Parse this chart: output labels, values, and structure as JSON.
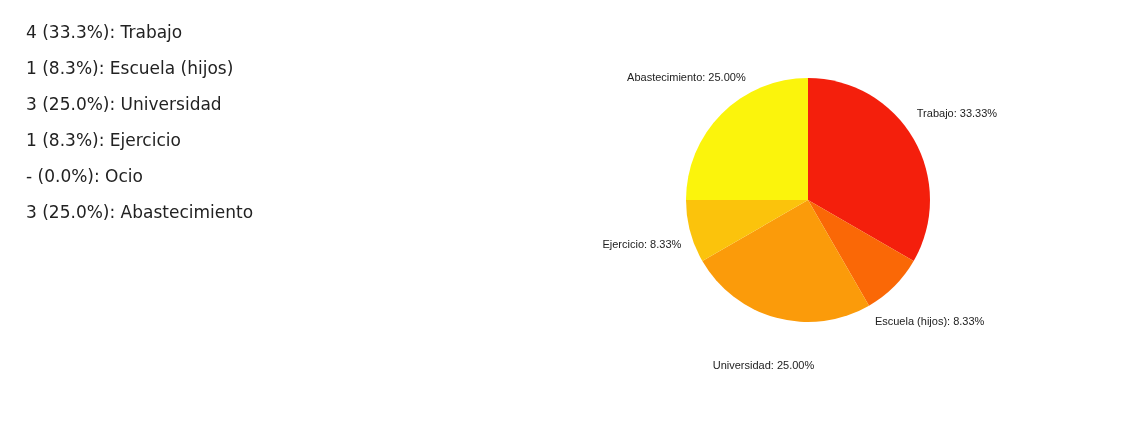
{
  "chart_data": {
    "type": "pie",
    "categories": [
      "Trabajo",
      "Escuela (hijos)",
      "Universidad",
      "Ejercicio",
      "Abastecimiento"
    ],
    "values": [
      33.33,
      8.33,
      25.0,
      8.33,
      25.0
    ],
    "colors": [
      "#f41f0c",
      "#fa6806",
      "#fb9b0a",
      "#fbc30c",
      "#fbf40c"
    ],
    "value_labels": [
      "33.33%",
      "8.33%",
      "25.00%",
      "8.33%",
      "25.00%"
    ],
    "annotations": [
      "4 (33.3%): Trabajo",
      "1 (8.3%): Escuela (hijos)",
      "3 (25.0%): Universidad",
      "1 (8.3%): Ejercicio",
      "- (0.0%): Ocio",
      "3 (25.0%): Abastecimiento"
    ]
  }
}
